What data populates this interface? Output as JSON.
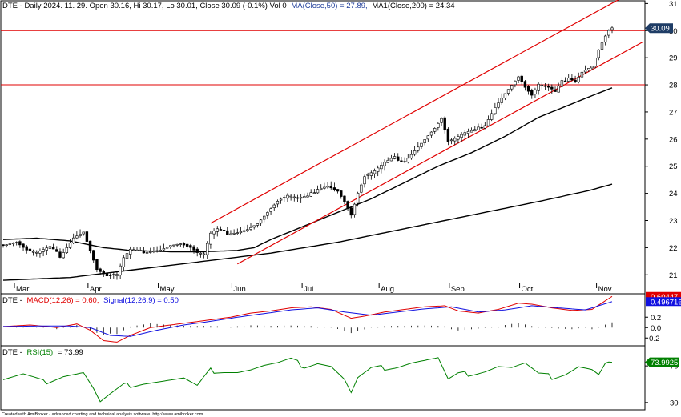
{
  "main": {
    "symbol": "DTE",
    "header": {
      "prefix": "DTE - Daily 2024. 11. 29. Open 30.16, Hi 30.17, Lo 30.01, Close 30.09 (-0.1%) Vol 0",
      "ma1": "MA(Close,50) = 27.89,",
      "ma2": "MA1(Close,200) = 24.34"
    },
    "last_tag": "30.09"
  },
  "macd_panel": {
    "header": {
      "prefix": "DTE -",
      "macd": "MACD(12,26) = 0.60,",
      "signal": "Signal(12,26,9) = 0.50"
    },
    "tag_macd": "0.60447",
    "tag_signal": "0.496716"
  },
  "rsi_panel": {
    "header": {
      "prefix": "DTE -",
      "rsi": "RSI(15)",
      "value": "= 73.99"
    },
    "tag": "73.9925"
  },
  "footer": "Created with AmiBroker - advanced charting and technical analysis software. http://www.amibroker.com",
  "colors": {
    "up": "#000000",
    "down": "#000000",
    "ma": "#000000",
    "channel": "#e00000",
    "macd": "#e00000",
    "signal": "#1010e0",
    "hist": "#000000",
    "rsi": "#008000",
    "tag_close": "#1f3d66",
    "tag_signal": "#1010e0",
    "tag_rsi": "#008000"
  },
  "chart_data": [
    {
      "type": "candlestick",
      "title": "DTE - Daily 2024. 11. 29.",
      "x_range": [
        "2024-03-01",
        "2024-11-29"
      ],
      "x_tick_labels": [
        "Mar",
        "Apr",
        "May",
        "Jun",
        "Jul",
        "Aug",
        "Sep",
        "Oct",
        "Nov"
      ],
      "y_ticks": [
        21,
        22,
        23,
        24,
        25,
        26,
        27,
        28,
        29,
        30,
        31
      ],
      "ylim": [
        20.3,
        31.1
      ],
      "close_keypoints": [
        [
          0,
          22.1
        ],
        [
          4,
          22.2
        ],
        [
          7,
          21.9
        ],
        [
          10,
          21.8
        ],
        [
          14,
          22.0
        ],
        [
          17,
          21.7
        ],
        [
          21,
          22.4
        ],
        [
          24,
          22.6
        ],
        [
          26,
          21.9
        ],
        [
          28,
          21.2
        ],
        [
          31,
          20.95
        ],
        [
          34,
          21.0
        ],
        [
          36,
          21.6
        ],
        [
          38,
          21.9
        ],
        [
          41,
          21.85
        ],
        [
          44,
          21.9
        ],
        [
          47,
          21.95
        ],
        [
          50,
          22.1
        ],
        [
          53,
          22.15
        ],
        [
          56,
          22.0
        ],
        [
          58,
          21.8
        ],
        [
          60,
          21.75
        ],
        [
          62,
          22.5
        ],
        [
          64,
          22.65
        ],
        [
          67,
          22.55
        ],
        [
          70,
          22.6
        ],
        [
          73,
          22.7
        ],
        [
          76,
          22.9
        ],
        [
          79,
          23.3
        ],
        [
          82,
          23.7
        ],
        [
          85,
          23.9
        ],
        [
          88,
          23.8
        ],
        [
          91,
          23.85
        ],
        [
          94,
          24.2
        ],
        [
          97,
          24.3
        ],
        [
          100,
          24.1
        ],
        [
          102,
          23.7
        ],
        [
          104,
          23.2
        ],
        [
          106,
          24.0
        ],
        [
          108,
          24.6
        ],
        [
          111,
          24.8
        ],
        [
          114,
          25.1
        ],
        [
          117,
          25.3
        ],
        [
          120,
          25.2
        ],
        [
          123,
          25.6
        ],
        [
          126,
          26.0
        ],
        [
          129,
          26.4
        ],
        [
          131,
          26.75
        ],
        [
          133,
          25.9
        ],
        [
          135,
          26.0
        ],
        [
          138,
          26.2
        ],
        [
          141,
          26.3
        ],
        [
          144,
          26.55
        ],
        [
          147,
          27.2
        ],
        [
          150,
          27.7
        ],
        [
          152,
          28.0
        ],
        [
          154,
          28.3
        ],
        [
          156,
          27.9
        ],
        [
          158,
          27.6
        ],
        [
          160,
          28.0
        ],
        [
          163,
          27.9
        ],
        [
          165,
          27.7
        ],
        [
          167,
          28.1
        ],
        [
          169,
          28.3
        ],
        [
          171,
          28.15
        ],
        [
          173,
          28.5
        ],
        [
          176,
          28.7
        ],
        [
          178,
          29.3
        ],
        [
          180,
          29.8
        ],
        [
          181,
          30.0
        ],
        [
          182,
          30.09
        ]
      ],
      "moving_averages": [
        {
          "name": "MA(Close,50)",
          "last": 27.89,
          "keypoints": [
            [
              0,
              22.3
            ],
            [
              10,
              22.35
            ],
            [
              20,
              22.25
            ],
            [
              30,
              22.0
            ],
            [
              38,
              21.9
            ],
            [
              50,
              21.85
            ],
            [
              60,
              21.85
            ],
            [
              70,
              21.9
            ],
            [
              75,
              22.0
            ],
            [
              80,
              22.3
            ],
            [
              90,
              22.8
            ],
            [
              100,
              23.3
            ],
            [
              110,
              23.8
            ],
            [
              120,
              24.4
            ],
            [
              130,
              25.0
            ],
            [
              140,
              25.5
            ],
            [
              150,
              26.1
            ],
            [
              160,
              26.8
            ],
            [
              170,
              27.3
            ],
            [
              176,
              27.6
            ],
            [
              182,
              27.89
            ]
          ]
        },
        {
          "name": "MA1(Close,200)",
          "last": 24.34,
          "keypoints": [
            [
              0,
              20.8
            ],
            [
              20,
              20.9
            ],
            [
              40,
              21.2
            ],
            [
              60,
              21.5
            ],
            [
              80,
              21.8
            ],
            [
              100,
              22.2
            ],
            [
              120,
              22.7
            ],
            [
              140,
              23.2
            ],
            [
              160,
              23.7
            ],
            [
              175,
              24.1
            ],
            [
              182,
              24.34
            ]
          ]
        }
      ],
      "channel": [
        {
          "x": [
            62,
            182
          ],
          "y": [
            22.9,
            31.05
          ]
        },
        {
          "x": [
            70,
            182
          ],
          "y": [
            21.4,
            29.0
          ]
        }
      ],
      "horizontal_lines": [
        30.0,
        28.0
      ]
    },
    {
      "type": "line",
      "title": "MACD(12,26) = 0.60, Signal(12,26,9) = 0.50",
      "y_ticks": [
        -0.2,
        0,
        0.2
      ],
      "ylim": [
        -0.35,
        0.65
      ],
      "series": [
        {
          "name": "MACD(12,26)",
          "last": 0.6,
          "keypoints": [
            [
              0,
              0.02
            ],
            [
              8,
              0.05
            ],
            [
              16,
              0.0
            ],
            [
              22,
              0.07
            ],
            [
              26,
              -0.05
            ],
            [
              30,
              -0.25
            ],
            [
              34,
              -0.28
            ],
            [
              38,
              -0.15
            ],
            [
              44,
              0.0
            ],
            [
              50,
              0.05
            ],
            [
              56,
              0.1
            ],
            [
              62,
              0.15
            ],
            [
              68,
              0.2
            ],
            [
              74,
              0.28
            ],
            [
              80,
              0.32
            ],
            [
              86,
              0.38
            ],
            [
              92,
              0.4
            ],
            [
              98,
              0.35
            ],
            [
              104,
              0.18
            ],
            [
              108,
              0.22
            ],
            [
              114,
              0.3
            ],
            [
              120,
              0.35
            ],
            [
              126,
              0.4
            ],
            [
              132,
              0.42
            ],
            [
              136,
              0.32
            ],
            [
              142,
              0.28
            ],
            [
              148,
              0.35
            ],
            [
              154,
              0.47
            ],
            [
              158,
              0.45
            ],
            [
              164,
              0.38
            ],
            [
              170,
              0.33
            ],
            [
              176,
              0.35
            ],
            [
              182,
              0.6
            ]
          ]
        },
        {
          "name": "Signal(12,26,9)",
          "last": 0.5,
          "keypoints": [
            [
              0,
              0.02
            ],
            [
              10,
              0.03
            ],
            [
              20,
              0.03
            ],
            [
              26,
              0.0
            ],
            [
              32,
              -0.15
            ],
            [
              38,
              -0.17
            ],
            [
              46,
              -0.05
            ],
            [
              54,
              0.05
            ],
            [
              62,
              0.12
            ],
            [
              70,
              0.2
            ],
            [
              78,
              0.27
            ],
            [
              86,
              0.34
            ],
            [
              94,
              0.38
            ],
            [
              102,
              0.3
            ],
            [
              110,
              0.24
            ],
            [
              118,
              0.3
            ],
            [
              126,
              0.36
            ],
            [
              134,
              0.4
            ],
            [
              142,
              0.3
            ],
            [
              150,
              0.34
            ],
            [
              158,
              0.42
            ],
            [
              166,
              0.38
            ],
            [
              174,
              0.34
            ],
            [
              182,
              0.5
            ]
          ]
        }
      ]
    },
    {
      "type": "line",
      "title": "RSI(15) = 73.99",
      "y_ticks": [
        30,
        70
      ],
      "ylim": [
        22,
        92
      ],
      "series": [
        {
          "name": "RSI(15)",
          "last": 73.99,
          "keypoints": [
            [
              0,
              55
            ],
            [
              6,
              60
            ],
            [
              12,
              52
            ],
            [
              18,
              60
            ],
            [
              24,
              63
            ],
            [
              27,
              45
            ],
            [
              29,
              30
            ],
            [
              32,
              38
            ],
            [
              36,
              48
            ],
            [
              42,
              52
            ],
            [
              48,
              54
            ],
            [
              54,
              56
            ],
            [
              58,
              47
            ],
            [
              62,
              65
            ],
            [
              66,
              65
            ],
            [
              70,
              64
            ],
            [
              74,
              66
            ],
            [
              78,
              70
            ],
            [
              82,
              72
            ],
            [
              86,
              76
            ],
            [
              90,
              70
            ],
            [
              94,
              74
            ],
            [
              98,
              70
            ],
            [
              102,
              55
            ],
            [
              104,
              40
            ],
            [
              106,
              56
            ],
            [
              110,
              66
            ],
            [
              114,
              68
            ],
            [
              118,
              70
            ],
            [
              122,
              74
            ],
            [
              126,
              76
            ],
            [
              130,
              78
            ],
            [
              133,
              54
            ],
            [
              136,
              60
            ],
            [
              140,
              62
            ],
            [
              144,
              65
            ],
            [
              148,
              70
            ],
            [
              152,
              68
            ],
            [
              156,
              72
            ],
            [
              160,
              60
            ],
            [
              164,
              58
            ],
            [
              168,
              62
            ],
            [
              172,
              70
            ],
            [
              176,
              66
            ],
            [
              178,
              60
            ],
            [
              180,
              72
            ],
            [
              182,
              73.99
            ]
          ]
        }
      ]
    }
  ]
}
